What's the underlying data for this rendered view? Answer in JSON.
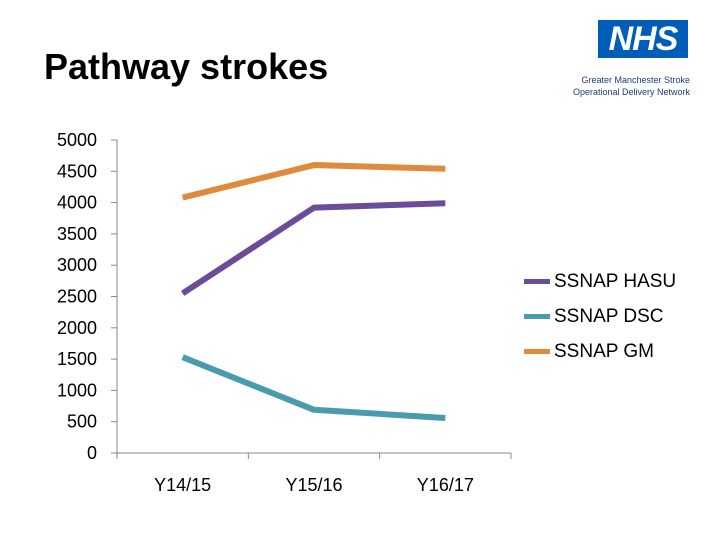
{
  "header": {
    "title": "Pathway strokes",
    "logo_text": "NHS",
    "network_line1": "Greater Manchester Stroke",
    "network_line2": "Operational Delivery Network"
  },
  "colors": {
    "nhs_blue": "#005EB8",
    "hasu": "#6B4C9A",
    "dsc": "#4A9BB0",
    "gm": "#E08A3C"
  },
  "chart_data": {
    "type": "line",
    "title": "",
    "xlabel": "",
    "ylabel": "",
    "categories": [
      "Y14/15",
      "Y15/16",
      "Y16/17"
    ],
    "ylim": [
      0,
      5000
    ],
    "yticks": [
      0,
      500,
      1000,
      1500,
      2000,
      2500,
      3000,
      3500,
      4000,
      4500,
      5000
    ],
    "grid": false,
    "legend_position": "right",
    "series": [
      {
        "name": "SSNAP HASU",
        "color": "#6B4C9A",
        "values": [
          2550,
          3920,
          3990
        ]
      },
      {
        "name": "SSNAP DSC",
        "color": "#4A9BB0",
        "values": [
          1530,
          690,
          560
        ]
      },
      {
        "name": "SSNAP GM",
        "color": "#E08A3C",
        "values": [
          4080,
          4600,
          4540
        ]
      }
    ]
  }
}
